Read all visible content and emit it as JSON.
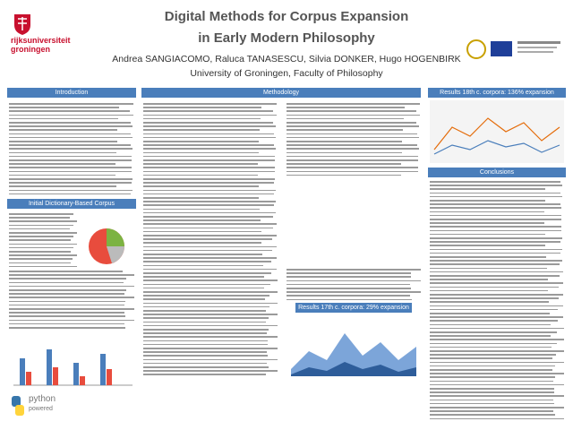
{
  "header": {
    "title_line1": "Digital Methods for Corpus Expansion",
    "title_line2": "in Early Modern Philosophy",
    "authors": "Andrea SANGIACOMO, Raluca TANASESCU, Silvia DONKER, Hugo HOGENBIRK",
    "affiliation": "University of Groningen, Faculty of Philosophy"
  },
  "logo": {
    "line1": "rijksuniversiteit",
    "line2": "groningen"
  },
  "sections": {
    "introduction": "Introduction",
    "methodology": "Methodology",
    "results_18": "Results 18th c. corpora: 136% expansion",
    "conclusions": "Conclusions",
    "initial_corpus": "Initial Dictionary-Based Corpus",
    "results_17": "Results 17th c. corpora: 29% expansion"
  },
  "footer": {
    "python": "python",
    "powered": "powered"
  }
}
